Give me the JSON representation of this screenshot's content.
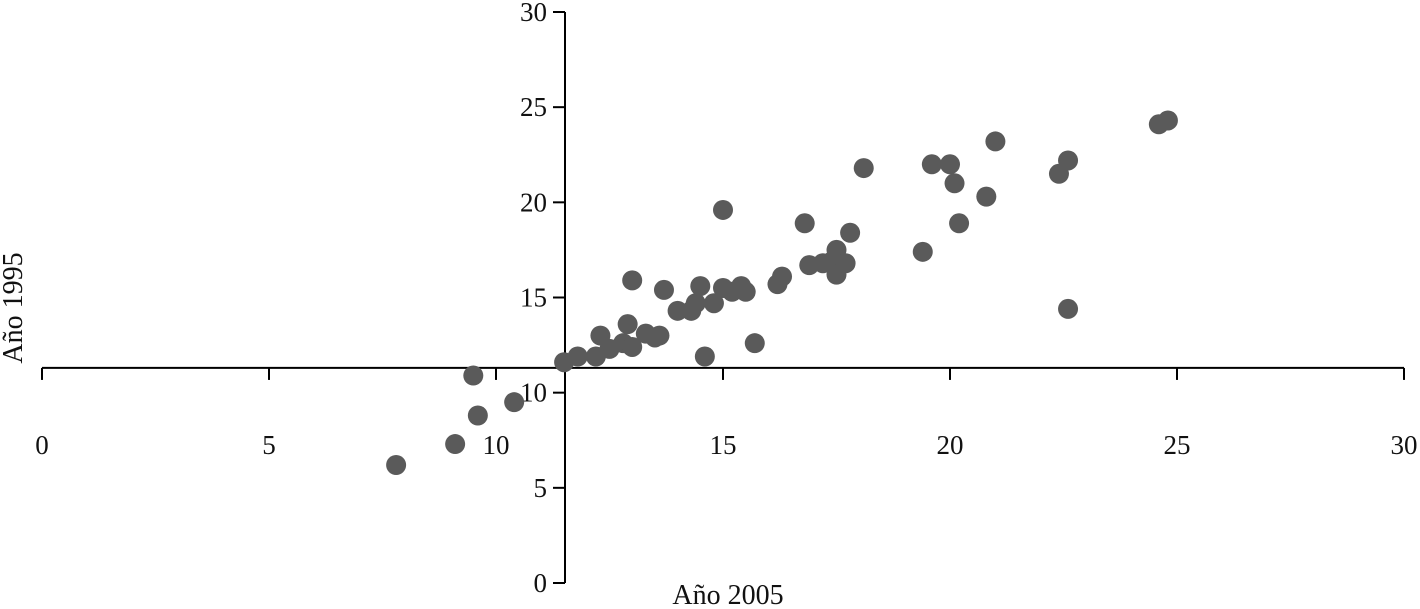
{
  "chart_data": {
    "type": "scatter",
    "xlabel": "Año 2005",
    "ylabel": "Año 1995",
    "xlim": [
      0,
      30
    ],
    "ylim": [
      0,
      30
    ],
    "xticks": [
      0,
      5,
      10,
      15,
      20,
      25,
      30
    ],
    "yticks": [
      0,
      5,
      10,
      15,
      20,
      25,
      30
    ],
    "x_axis_crosses_y_at": 11.3,
    "marker_color": "#5a5a5a",
    "series": [
      {
        "points": [
          {
            "x": 7.8,
            "y": 6.2
          },
          {
            "x": 9.1,
            "y": 7.3
          },
          {
            "x": 9.5,
            "y": 10.9
          },
          {
            "x": 9.6,
            "y": 8.8
          },
          {
            "x": 10.4,
            "y": 9.5
          },
          {
            "x": 11.5,
            "y": 11.6
          },
          {
            "x": 11.8,
            "y": 11.9
          },
          {
            "x": 12.2,
            "y": 11.9
          },
          {
            "x": 12.3,
            "y": 13.0
          },
          {
            "x": 12.5,
            "y": 12.3
          },
          {
            "x": 12.8,
            "y": 12.6
          },
          {
            "x": 12.9,
            "y": 13.6
          },
          {
            "x": 13.0,
            "y": 15.9
          },
          {
            "x": 13.0,
            "y": 12.4
          },
          {
            "x": 13.3,
            "y": 13.1
          },
          {
            "x": 13.5,
            "y": 12.9
          },
          {
            "x": 13.6,
            "y": 13.0
          },
          {
            "x": 13.7,
            "y": 15.4
          },
          {
            "x": 14.0,
            "y": 14.3
          },
          {
            "x": 14.3,
            "y": 14.3
          },
          {
            "x": 14.4,
            "y": 14.7
          },
          {
            "x": 14.5,
            "y": 15.6
          },
          {
            "x": 14.6,
            "y": 11.9
          },
          {
            "x": 14.8,
            "y": 14.7
          },
          {
            "x": 15.0,
            "y": 19.6
          },
          {
            "x": 15.0,
            "y": 15.5
          },
          {
            "x": 15.2,
            "y": 15.3
          },
          {
            "x": 15.4,
            "y": 15.6
          },
          {
            "x": 15.5,
            "y": 15.3
          },
          {
            "x": 15.7,
            "y": 12.6
          },
          {
            "x": 16.2,
            "y": 15.7
          },
          {
            "x": 16.3,
            "y": 16.1
          },
          {
            "x": 16.8,
            "y": 18.9
          },
          {
            "x": 16.9,
            "y": 16.7
          },
          {
            "x": 17.2,
            "y": 16.8
          },
          {
            "x": 17.4,
            "y": 16.9
          },
          {
            "x": 17.5,
            "y": 17.5
          },
          {
            "x": 17.5,
            "y": 16.2
          },
          {
            "x": 17.7,
            "y": 16.8
          },
          {
            "x": 17.8,
            "y": 18.4
          },
          {
            "x": 18.1,
            "y": 21.8
          },
          {
            "x": 19.4,
            "y": 17.4
          },
          {
            "x": 19.6,
            "y": 22.0
          },
          {
            "x": 20.0,
            "y": 22.0
          },
          {
            "x": 20.1,
            "y": 21.0
          },
          {
            "x": 20.2,
            "y": 18.9
          },
          {
            "x": 20.8,
            "y": 20.3
          },
          {
            "x": 21.0,
            "y": 23.2
          },
          {
            "x": 22.4,
            "y": 21.5
          },
          {
            "x": 22.6,
            "y": 22.2
          },
          {
            "x": 22.6,
            "y": 14.4
          },
          {
            "x": 24.6,
            "y": 24.1
          },
          {
            "x": 24.8,
            "y": 24.3
          }
        ]
      }
    ]
  }
}
